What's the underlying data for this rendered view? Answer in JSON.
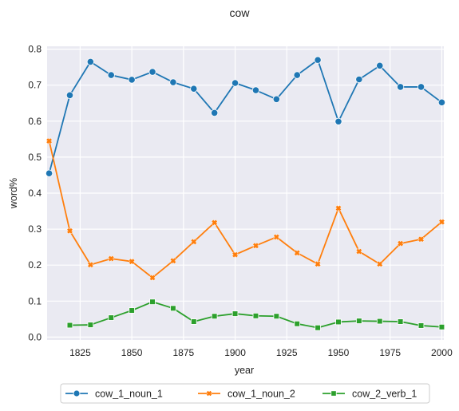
{
  "chart_data": {
    "type": "line",
    "title": "cow",
    "xlabel": "year",
    "ylabel": "word%",
    "xlim": [
      1809,
      2001
    ],
    "ylim": [
      -0.008,
      0.808
    ],
    "xticks": [
      1825,
      1850,
      1875,
      1900,
      1925,
      1950,
      1975,
      2000
    ],
    "yticks": [
      0.0,
      0.1,
      0.2,
      0.3,
      0.4,
      0.5,
      0.6,
      0.7,
      0.8
    ],
    "grid": true,
    "legend_position": "bottom-center",
    "series": [
      {
        "name": "cow_1_noun_1",
        "color": "#1f77b4",
        "marker": "circle",
        "x": [
          1810,
          1820,
          1830,
          1840,
          1850,
          1860,
          1870,
          1880,
          1890,
          1900,
          1910,
          1920,
          1930,
          1940,
          1950,
          1960,
          1970,
          1980,
          1990,
          2000
        ],
        "y": [
          0.455,
          0.672,
          0.765,
          0.728,
          0.715,
          0.737,
          0.708,
          0.69,
          0.623,
          0.706,
          0.686,
          0.661,
          0.728,
          0.77,
          0.599,
          0.716,
          0.754,
          0.695,
          0.695,
          0.652
        ]
      },
      {
        "name": "cow_1_noun_2",
        "color": "#ff7f0e",
        "marker": "x",
        "x": [
          1810,
          1820,
          1830,
          1840,
          1850,
          1860,
          1870,
          1880,
          1890,
          1900,
          1910,
          1920,
          1930,
          1940,
          1950,
          1960,
          1970,
          1980,
          1990,
          2000
        ],
        "y": [
          0.545,
          0.295,
          0.201,
          0.218,
          0.21,
          0.165,
          0.212,
          0.265,
          0.318,
          0.229,
          0.254,
          0.278,
          0.234,
          0.203,
          0.358,
          0.238,
          0.203,
          0.26,
          0.272,
          0.32
        ]
      },
      {
        "name": "cow_2_verb_1",
        "color": "#2ca02c",
        "marker": "square",
        "x": [
          1820,
          1830,
          1840,
          1850,
          1860,
          1870,
          1880,
          1890,
          1900,
          1910,
          1920,
          1930,
          1940,
          1950,
          1960,
          1970,
          1980,
          1990,
          2000
        ],
        "y": [
          0.033,
          0.034,
          0.054,
          0.074,
          0.098,
          0.08,
          0.043,
          0.058,
          0.065,
          0.059,
          0.058,
          0.037,
          0.026,
          0.042,
          0.045,
          0.044,
          0.043,
          0.032,
          0.028
        ]
      }
    ]
  }
}
